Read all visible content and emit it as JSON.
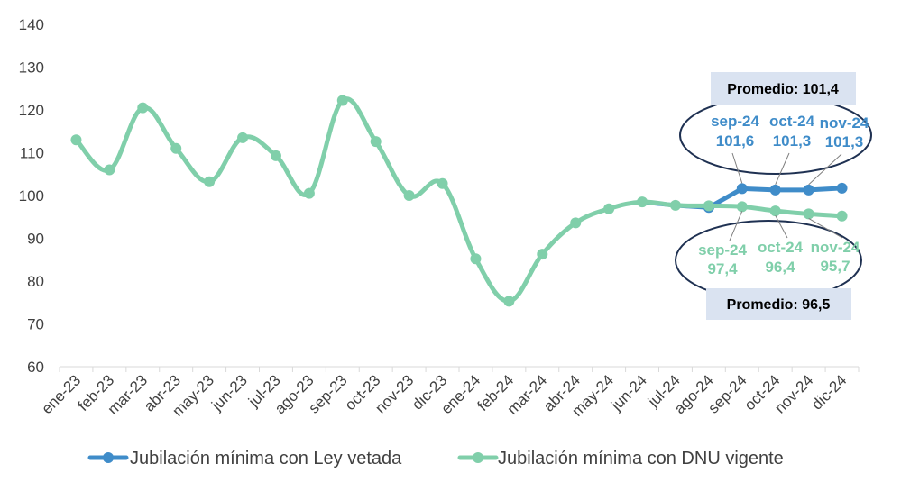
{
  "chart_data": {
    "type": "line",
    "categories": [
      "ene-23",
      "feb-23",
      "mar-23",
      "abr-23",
      "may-23",
      "jun-23",
      "jul-23",
      "ago-23",
      "sep-23",
      "oct-23",
      "nov-23",
      "dic-23",
      "ene-24",
      "feb-24",
      "mar-24",
      "abr-24",
      "may-24",
      "jun-24",
      "jul-24",
      "ago-24",
      "sep-24",
      "oct-24",
      "nov-24",
      "dic-24"
    ],
    "ylim": [
      60,
      140
    ],
    "yticks": [
      "60",
      "70",
      "80",
      "90",
      "100",
      "110",
      "120",
      "130",
      "140"
    ],
    "series": [
      {
        "name": "Jubilación mínima con Ley vetada",
        "color": "#3f8cc9",
        "values": [
          null,
          null,
          null,
          null,
          null,
          null,
          null,
          null,
          null,
          null,
          null,
          null,
          null,
          null,
          null,
          null,
          null,
          98.5,
          97.7,
          97.2,
          101.6,
          101.3,
          101.3,
          101.7
        ]
      },
      {
        "name": "Jubilación mínima con DNU vigente",
        "color": "#80cfaa",
        "values": [
          113,
          106,
          120.5,
          111,
          103.2,
          113.5,
          109.3,
          100.5,
          122.2,
          112.6,
          100,
          102.8,
          85.2,
          75.3,
          86.3,
          93.6,
          96.9,
          98.5,
          97.7,
          97.6,
          97.4,
          96.4,
          95.7,
          95.2
        ]
      }
    ],
    "annotations": {
      "upper": [
        {
          "month": "sep-24",
          "value": "101,6"
        },
        {
          "month": "oct-24",
          "value": "101,3"
        },
        {
          "month": "nov-24",
          "value": "101,3"
        }
      ],
      "lower": [
        {
          "month": "sep-24",
          "value": "97,4"
        },
        {
          "month": "oct-24",
          "value": "96,4"
        },
        {
          "month": "nov-24",
          "value": "95,7"
        }
      ],
      "upper_average": "Promedio: 101,4",
      "lower_average": "Promedio: 96,5"
    },
    "legend_position": "bottom"
  }
}
